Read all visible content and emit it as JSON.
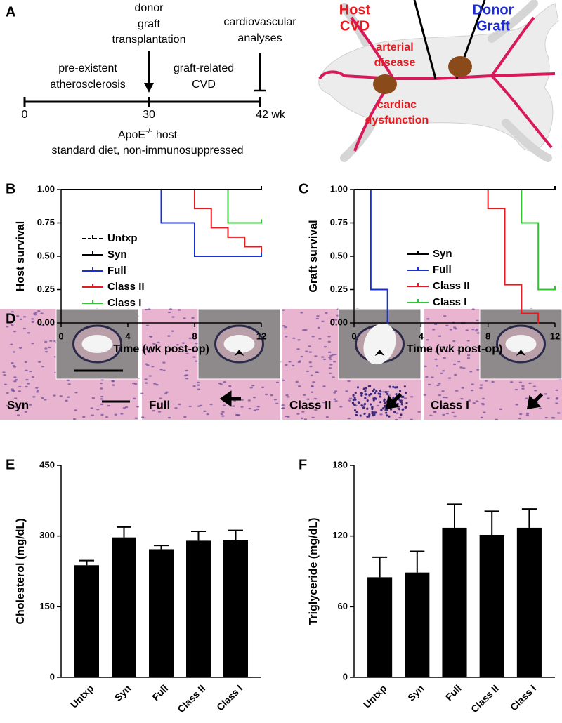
{
  "panel_a": {
    "panel_label": "A",
    "timeline": {
      "donor_event": [
        "donor",
        "graft",
        "transplantation"
      ],
      "end_event": [
        "cardiovascular",
        "analyses"
      ],
      "phase_1": [
        "pre-existent",
        "atherosclerosis"
      ],
      "phase_2": [
        "graft-related",
        "CVD"
      ],
      "ticks": [
        "0",
        "30",
        "42 wk"
      ],
      "host": {
        "name": "ApoE",
        "superscript": "-/-",
        "suffix": " host"
      },
      "conditions": "standard diet, non-immunosuppressed"
    },
    "illustration": {
      "host_label": [
        "Host",
        "CVD"
      ],
      "donor_label": [
        "Donor",
        "Graft"
      ],
      "arterial": [
        "arterial",
        "disease"
      ],
      "cardiac": [
        "cardiac",
        "dysfunction"
      ]
    }
  },
  "panel_d": {
    "panel_label": "D",
    "images": [
      {
        "label": "Syn"
      },
      {
        "label": "Full"
      },
      {
        "label": "Class II"
      },
      {
        "label": "Class I"
      }
    ]
  },
  "chart_data": [
    {
      "type": "step",
      "panel_label": "B",
      "ylabel": "Host survival",
      "xlabel": "Time (wk post-op)",
      "xlim": [
        0,
        12
      ],
      "ylim": [
        0,
        1
      ],
      "xticks": [
        0,
        4,
        8,
        12
      ],
      "yticks": [
        {
          "value": 0,
          "label": "0.00"
        },
        {
          "value": 0.25,
          "label": "0.25"
        },
        {
          "value": 0.5,
          "label": "0.50"
        },
        {
          "value": 0.75,
          "label": "0.75"
        },
        {
          "value": 1,
          "label": "1.00"
        }
      ],
      "legend": "lower left",
      "series": [
        {
          "name": "Untxp",
          "color": "#000000",
          "dashed": true,
          "x": [
            0,
            12
          ],
          "values": [
            1,
            1
          ]
        },
        {
          "name": "Syn",
          "color": "#000000",
          "x": [
            0,
            12
          ],
          "values": [
            1,
            1
          ]
        },
        {
          "name": "Full",
          "color": "#1a2fd0",
          "x": [
            0,
            6,
            8,
            12
          ],
          "values": [
            1,
            0.75,
            0.5,
            0.5
          ]
        },
        {
          "name": "Class II",
          "color": "#e8191f",
          "x": [
            0,
            8,
            9,
            10,
            11,
            12
          ],
          "values": [
            1,
            0.857,
            0.714,
            0.643,
            0.571,
            0.5
          ]
        },
        {
          "name": "Class I",
          "color": "#33c433",
          "x": [
            0,
            10,
            12
          ],
          "values": [
            1,
            0.75,
            0.75
          ]
        }
      ]
    },
    {
      "type": "step",
      "panel_label": "C",
      "ylabel": "Graft survival",
      "xlabel": "Time (wk post-op)",
      "xlim": [
        0,
        12
      ],
      "ylim": [
        0,
        1
      ],
      "xticks": [
        0,
        4,
        8,
        12
      ],
      "yticks": [
        {
          "value": 0,
          "label": "0.00"
        },
        {
          "value": 0.25,
          "label": "0.25"
        },
        {
          "value": 0.5,
          "label": "0.50"
        },
        {
          "value": 0.75,
          "label": "0.75"
        },
        {
          "value": 1,
          "label": "1.00"
        }
      ],
      "legend": "lower right",
      "series": [
        {
          "name": "Syn",
          "color": "#000000",
          "x": [
            0,
            12
          ],
          "values": [
            1,
            1
          ]
        },
        {
          "name": "Full",
          "color": "#1a2fd0",
          "x": [
            0,
            1,
            2
          ],
          "values": [
            1,
            0.25,
            0
          ]
        },
        {
          "name": "Class II",
          "color": "#e8191f",
          "x": [
            0,
            8,
            9,
            10,
            11
          ],
          "values": [
            1,
            0.857,
            0.286,
            0.071,
            0
          ]
        },
        {
          "name": "Class I",
          "color": "#33c433",
          "x": [
            0,
            10,
            11,
            12
          ],
          "values": [
            1,
            0.75,
            0.25,
            0.25
          ]
        }
      ]
    },
    {
      "type": "bar",
      "panel_label": "E",
      "ylabel": "Cholesterol (mg/dL)",
      "color": "#000000",
      "categories": [
        "Untxp",
        "Syn",
        "Full",
        "Class II",
        "Class I"
      ],
      "values": [
        238,
        297,
        272,
        290,
        292
      ],
      "errors": [
        10,
        22,
        8,
        20,
        20
      ],
      "ylim": [
        0,
        450
      ],
      "yticks": [
        0,
        150,
        300,
        450
      ]
    },
    {
      "type": "bar",
      "panel_label": "F",
      "ylabel": "Triglyceride (mg/dL)",
      "color": "#000000",
      "categories": [
        "Untxp",
        "Syn",
        "Full",
        "Class II",
        "Class I"
      ],
      "values": [
        85,
        89,
        127,
        121,
        127
      ],
      "errors": [
        17,
        18,
        20,
        20,
        16
      ],
      "ylim": [
        0,
        180
      ],
      "yticks": [
        0,
        60,
        120,
        180
      ]
    }
  ]
}
